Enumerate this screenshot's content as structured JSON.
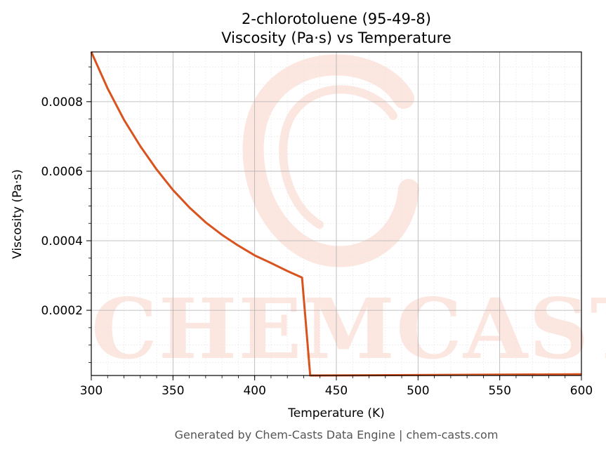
{
  "chart_data": {
    "type": "line",
    "title": "2-chlorotoluene (95-49-8)",
    "subtitle": "Viscosity (Pa·s) vs Temperature",
    "xlabel": "Temperature (K)",
    "ylabel": "Viscosity (Pa·s)",
    "xlim": [
      300,
      600
    ],
    "ylim": [
      1.25e-05,
      0.000943
    ],
    "xticks": [
      300,
      350,
      400,
      450,
      500,
      550,
      600
    ],
    "xtick_labels": [
      "300",
      "350",
      "400",
      "450",
      "500",
      "550",
      "600"
    ],
    "yticks": [
      0.0002,
      0.0004,
      0.0006,
      0.0008
    ],
    "ytick_labels": [
      "0.0002",
      "0.0004",
      "0.0006",
      "0.0008"
    ],
    "grid": true,
    "series": [
      {
        "color": "#d9531e",
        "x": [
          300,
          310,
          320,
          330,
          340,
          350,
          360,
          370,
          380,
          390,
          400,
          410,
          420,
          429,
          434,
          600
        ],
        "y": [
          0.000943,
          0.000838,
          0.000748,
          0.000672,
          0.000605,
          0.000546,
          0.000496,
          0.000453,
          0.000417,
          0.000386,
          0.000358,
          0.000336,
          0.000313,
          0.000294,
          1.25e-05,
          1.6e-05
        ]
      }
    ]
  },
  "watermark": {
    "text": "CHEMCASTS",
    "color": "#fbd3c8"
  },
  "footer": "Generated by Chem-Casts Data Engine | chem-casts.com"
}
